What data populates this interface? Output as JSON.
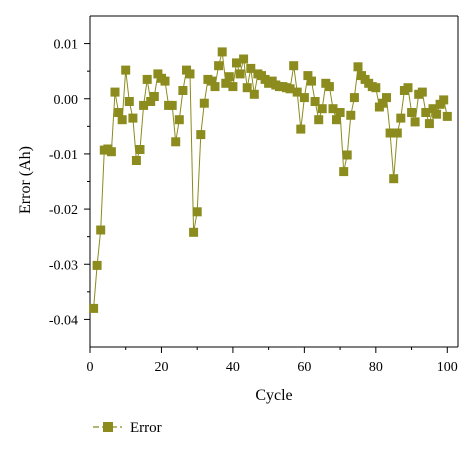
{
  "chart_data": {
    "type": "line",
    "xlabel": "Cycle",
    "ylabel": "Error (Ah)",
    "xlim": [
      0,
      103
    ],
    "ylim": [
      -0.045,
      0.015
    ],
    "x_ticks": [
      0,
      20,
      40,
      60,
      80,
      100
    ],
    "x_tick_labels": [
      "0",
      "20",
      "40",
      "60",
      "80",
      "100"
    ],
    "y_ticks": [
      0.01,
      0.0,
      -0.01,
      -0.02,
      -0.03,
      -0.04
    ],
    "y_tick_labels": [
      "0.01",
      "0.00",
      "-0.01",
      "-0.02",
      "-0.03",
      "-0.04"
    ],
    "grid": false,
    "legend_position": "bottom-left",
    "colors": {
      "series": "#8b8b1e",
      "axis": "#000000"
    },
    "series": [
      {
        "name": "Error",
        "x": [
          1,
          2,
          3,
          4,
          5,
          6,
          7,
          8,
          9,
          10,
          11,
          12,
          13,
          14,
          15,
          16,
          17,
          18,
          19,
          20,
          21,
          22,
          23,
          24,
          25,
          26,
          27,
          28,
          29,
          30,
          31,
          32,
          33,
          34,
          35,
          36,
          37,
          38,
          39,
          40,
          41,
          42,
          43,
          44,
          45,
          46,
          47,
          48,
          49,
          50,
          51,
          52,
          53,
          54,
          55,
          56,
          57,
          58,
          59,
          60,
          61,
          62,
          63,
          64,
          65,
          66,
          67,
          68,
          69,
          70,
          71,
          72,
          73,
          74,
          75,
          76,
          77,
          78,
          79,
          80,
          81,
          82,
          83,
          84,
          85,
          86,
          87,
          88,
          89,
          90,
          91,
          92,
          93,
          94,
          95,
          96,
          97,
          98,
          99,
          100
        ],
        "y": [
          -0.038,
          -0.0302,
          -0.0238,
          -0.0093,
          -0.0091,
          -0.0096,
          0.0012,
          -0.0025,
          -0.0038,
          0.0052,
          -0.0005,
          -0.0035,
          -0.0112,
          -0.0092,
          -0.0012,
          0.0035,
          -0.0005,
          0.0004,
          0.0045,
          0.0037,
          0.0032,
          -0.0012,
          -0.0012,
          -0.0078,
          -0.0038,
          0.0015,
          0.0052,
          0.0045,
          -0.0242,
          -0.0205,
          -0.0065,
          -0.0008,
          0.0035,
          0.0032,
          0.0022,
          0.006,
          0.0085,
          0.0028,
          0.004,
          0.0022,
          0.0065,
          0.0045,
          0.0072,
          0.002,
          0.0055,
          0.0008,
          0.0045,
          0.0042,
          0.0035,
          0.0028,
          0.0032,
          0.0025,
          0.0022,
          0.0022,
          0.002,
          0.0018,
          0.006,
          0.0012,
          -0.0055,
          0.0002,
          0.0042,
          0.0032,
          -0.0005,
          -0.0038,
          -0.0018,
          0.0028,
          0.0022,
          -0.0018,
          -0.0038,
          -0.0025,
          -0.0132,
          -0.0102,
          -0.003,
          0.0002,
          0.0058,
          0.0042,
          0.0035,
          0.0028,
          0.0022,
          0.002,
          -0.0015,
          -0.0008,
          0.0002,
          -0.0062,
          -0.0145,
          -0.0062,
          -0.0035,
          0.0015,
          0.002,
          -0.0025,
          -0.0042,
          0.0008,
          0.0012,
          -0.0025,
          -0.0045,
          -0.0018,
          -0.0028,
          -0.001,
          -0.0002,
          -0.0032
        ]
      }
    ]
  }
}
